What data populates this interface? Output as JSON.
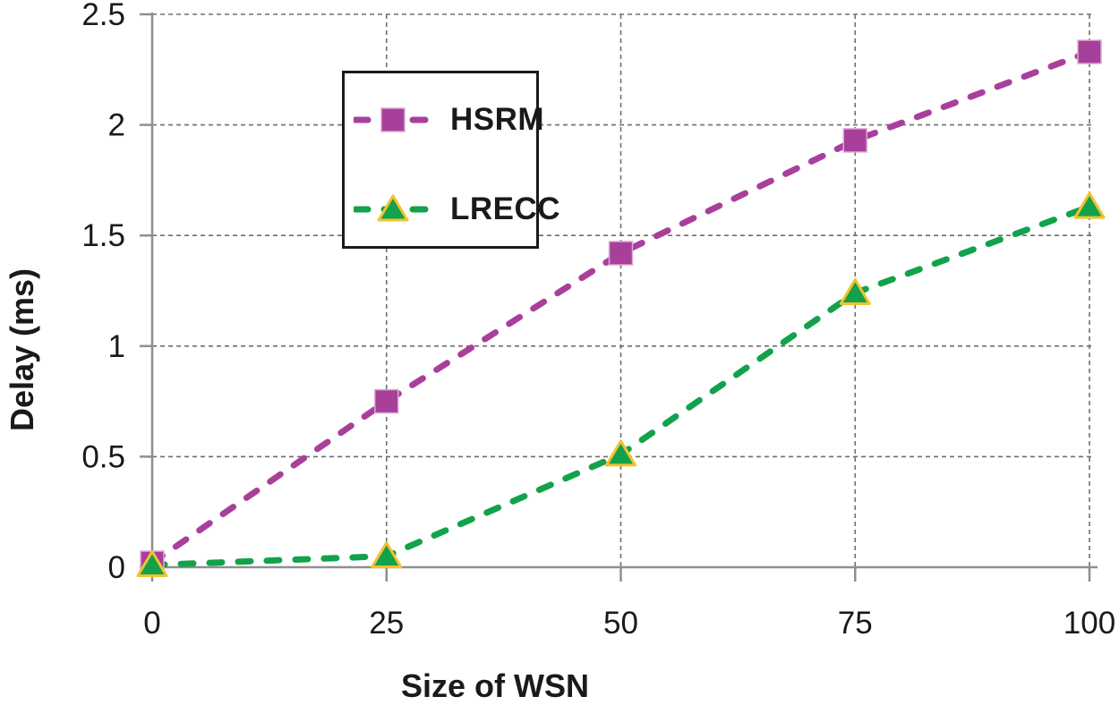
{
  "chart_data": {
    "type": "line",
    "title": "",
    "xlabel": "Size of WSN",
    "ylabel": "Delay (ms)",
    "x": [
      0,
      25,
      50,
      75,
      100
    ],
    "xlim": [
      0,
      100
    ],
    "ylim": [
      0,
      2.5
    ],
    "x_ticks": [
      0,
      25,
      50,
      75,
      100
    ],
    "x_tick_labels": [
      "0",
      "25",
      "50",
      "75",
      "100"
    ],
    "y_ticks": [
      0,
      0.5,
      1,
      1.5,
      2,
      2.5
    ],
    "y_tick_labels": [
      "0",
      "0.5",
      "1",
      "1.5",
      "2",
      "2.5"
    ],
    "grid": true,
    "legend_position": "upper left inside",
    "line_style": "dashed",
    "series": [
      {
        "name": "HSRM",
        "marker": "square",
        "color": "#A8409B",
        "marker_edge_color": "#DCA8D3",
        "values": [
          0.02,
          0.75,
          1.42,
          1.93,
          2.33
        ]
      },
      {
        "name": "LRECC",
        "marker": "triangle",
        "color": "#12A24B",
        "marker_edge_color": "#F5C12F",
        "values": [
          0.01,
          0.05,
          0.51,
          1.24,
          1.63
        ]
      }
    ],
    "colors": {
      "gridline": "#6F6F6F",
      "axis": "#8F8F8F",
      "text": "#1A1A1A",
      "legend_border": "#1A1A1A",
      "background": "#FFFFFF"
    }
  }
}
